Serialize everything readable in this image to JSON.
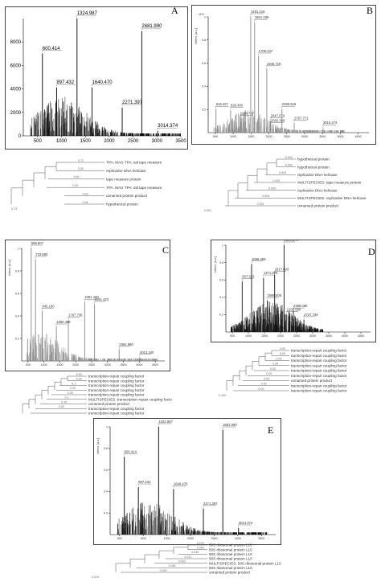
{
  "chart_data": [
    {
      "id": "A",
      "type": "bar",
      "panel_label": "A",
      "xlim": [
        200,
        3500
      ],
      "ylim": [
        0,
        10000
      ],
      "x_ticks": [
        500,
        1000,
        1500,
        2000,
        2500,
        3000,
        3500
      ],
      "y_ticks": [
        0,
        2000,
        4000,
        6000,
        8000
      ],
      "color": "#000000",
      "peaks": [
        {
          "mz": 600.414,
          "label": "600.414",
          "intensity": 7000
        },
        {
          "mz": 897.432,
          "label": "897.432",
          "intensity": 4100
        },
        {
          "mz": 1324.987,
          "label": "1324.987",
          "intensity": 10000
        },
        {
          "mz": 1640.47,
          "label": "1640.470",
          "intensity": 4100
        },
        {
          "mz": 2271.397,
          "label": "2271.397",
          "intensity": 2400
        },
        {
          "mz": 2681.99,
          "label": "2681.990",
          "intensity": 8900
        },
        {
          "mz": 3014.374,
          "label": "3014.374",
          "intensity": 400
        }
      ],
      "tree": {
        "leaves": [
          "TPA: MAG TPA: tail tape measure",
          "replicative DNA helicase",
          "tape measure protein",
          "TPA: MAG TPA: tail tape measure",
          "unnamed protein product",
          "hypothetical protein"
        ],
        "branch_labels": [
          "0.72",
          "0.00",
          "0.00",
          "0.00",
          "0.00",
          "0.94",
          "0.73"
        ]
      }
    },
    {
      "id": "B",
      "type": "bar",
      "panel_label": "B",
      "xlim": [
        300,
        4800
      ],
      "ylim": [
        0,
        1.0
      ],
      "x_ticks": [
        500,
        1000,
        1500,
        2000,
        2500,
        3000,
        3500,
        4000,
        4500
      ],
      "y_ticks": [
        0.2,
        0.4,
        0.6,
        0.8,
        1.0
      ],
      "y_axis_label": "Intens. [a.u.]",
      "y_exponent": "x10⁴",
      "color": "#888888",
      "peaks": [
        {
          "mz": 518.427,
          "label": "518.427",
          "intensity": 0.2
        },
        {
          "mz": 928.4,
          "label": "928.400",
          "intensity": 0.19
        },
        {
          "mz": 1194.737,
          "label": "1194.737",
          "intensity": 0.12
        },
        {
          "mz": 1491.216,
          "label": "1491.216",
          "intensity": 1.0
        },
        {
          "mz": 1601.189,
          "label": "1601.189",
          "intensity": 0.95
        },
        {
          "mz": 1709.447,
          "label": "1709.447",
          "intensity": 0.66
        },
        {
          "mz": 1940.719,
          "label": "1940.719",
          "intensity": 0.55
        },
        {
          "mz": 2047.074,
          "label": "2047.074",
          "intensity": 0.1
        },
        {
          "mz": 2050.366,
          "label": "2050.366",
          "intensity": 0.06
        },
        {
          "mz": 2365.516,
          "label": "2365.516",
          "intensity": 0.2
        },
        {
          "mz": 2707.771,
          "label": "2707.771",
          "intensity": 0.08
        },
        {
          "mz": 3515.274,
          "label": "3515.274",
          "intensity": 0.04
        }
      ],
      "tree": {
        "leaves": [
          "hypothetical protein",
          "hypothetical protein",
          "replicative DNA helicase",
          "MULTISPECIES: tape measure protein",
          "replicative DNA helicase",
          "MULTISPECIES: replicative DNA helicase",
          "unnamed protein product"
        ],
        "branch_labels": [
          "0.003",
          "0.003",
          "0.003",
          "0.002",
          "0.003",
          "0.003",
          "0.001",
          "0.001"
        ]
      }
    },
    {
      "id": "C",
      "type": "bar",
      "panel_label": "C",
      "xlim": [
        300,
        4800
      ],
      "ylim": [
        0,
        1.0
      ],
      "x_ticks": [
        500,
        1000,
        1500,
        2000,
        2500,
        3000,
        3500,
        4000,
        4500
      ],
      "y_ticks": [
        0.2,
        0.4,
        0.6,
        0.8,
        1.0
      ],
      "y_axis_label": "Intens. [a.u.]",
      "color": "#888888",
      "peaks": [
        {
          "mz": 598.807,
          "label": "598.807",
          "intensity": 1.0
        },
        {
          "mz": 733.88,
          "label": "733.880",
          "intensity": 0.9
        },
        {
          "mz": 945.18,
          "label": "945.180",
          "intensity": 0.44
        },
        {
          "mz": 1390.466,
          "label": "1390.466",
          "intensity": 0.3
        },
        {
          "mz": 1767.736,
          "label": "1767.736",
          "intensity": 0.36
        },
        {
          "mz": 2281.18,
          "label": "2281.180",
          "intensity": 0.52
        },
        {
          "mz": 2591.423,
          "label": "2591.423",
          "intensity": 0.5
        },
        {
          "mz": 3364.966,
          "label": "3364.966",
          "intensity": 0.1
        },
        {
          "mz": 4013.18,
          "label": "4013.180",
          "intensity": 0.03
        }
      ],
      "tree": {
        "leaves": [
          "transcription-repair coupling factor",
          "transcription-repair coupling factor",
          "transcription-repair coupling factor",
          "transcription-repair coupling factor",
          "transcription-repair coupling factor",
          "MULTISPECIES: transcription-repair coupling factor",
          "unnamed protein product",
          "transcription-repair coupling factor",
          "transcription-repair coupling factor"
        ],
        "branch_labels": [
          "0.00",
          "0.00",
          "0.1",
          "0.00",
          "0.00",
          "0.1",
          "0.10",
          "0.00"
        ]
      }
    },
    {
      "id": "D",
      "type": "bar",
      "panel_label": "D",
      "xlim": [
        300,
        4800
      ],
      "ylim": [
        0,
        1.0
      ],
      "x_ticks": [
        500,
        1000,
        1500,
        2000,
        2500,
        3000,
        3500,
        4000,
        4500
      ],
      "y_ticks": [
        0.2,
        0.4,
        0.6,
        0.8,
        1.0
      ],
      "y_axis_label": "Intens. [a.u.]",
      "color": "#111111",
      "peaks": [
        {
          "mz": 807.343,
          "label": "807.343",
          "intensity": 0.58
        },
        {
          "mz": 1099.469,
          "label": "1099.469",
          "intensity": 0.78
        },
        {
          "mz": 1471.59,
          "label": "1471.590",
          "intensity": 0.62
        },
        {
          "mz": 1586.008,
          "label": "1586.008",
          "intensity": 0.36
        },
        {
          "mz": 1817.693,
          "label": "1817.693",
          "intensity": 0.66
        },
        {
          "mz": 2109.376,
          "label": "2109.376",
          "intensity": 1.0
        },
        {
          "mz": 2193.59,
          "label": "2193.590",
          "intensity": 0.2
        },
        {
          "mz": 2398.08,
          "label": "2398.080",
          "intensity": 0.24
        },
        {
          "mz": 2727.735,
          "label": "2727.735",
          "intensity": 0.14
        }
      ],
      "tree": {
        "leaves": [
          "transcription-repair coupling factor",
          "transcription-repair coupling factor",
          "transcription-repair coupling factor",
          "transcription-repair coupling factor",
          "transcription-repair coupling factor",
          "transcription-repair coupling factor",
          "unnamed protein product",
          "transcription-repair coupling factor",
          "transcription-repair coupling factor"
        ],
        "branch_labels": [
          "0.00",
          "0.00",
          "0.00",
          "0.00",
          "0.00",
          "0.00",
          "0.00",
          "0.00",
          "0.00",
          "0.100"
        ]
      }
    },
    {
      "id": "E",
      "type": "bar",
      "panel_label": "E",
      "xlim": [
        300,
        3800
      ],
      "ylim": [
        0,
        1.0
      ],
      "x_ticks": [
        500,
        1000,
        1500,
        2000,
        2500,
        3000,
        3500
      ],
      "y_ticks": [
        0.2,
        0.4,
        0.6,
        0.8,
        1.0
      ],
      "y_axis_label": "Intens. [a.u.]",
      "color": "#000000",
      "peaks": [
        {
          "mz": 600.414,
          "label": "600.414",
          "intensity": 0.72
        },
        {
          "mz": 897.432,
          "label": "897.432",
          "intensity": 0.44
        },
        {
          "mz": 1324.987,
          "label": "1324.987",
          "intensity": 1.0
        },
        {
          "mz": 1640.47,
          "label": "1640.470",
          "intensity": 0.42
        },
        {
          "mz": 2271.397,
          "label": "2271.397",
          "intensity": 0.24
        },
        {
          "mz": 2681.99,
          "label": "2681.990",
          "intensity": 0.97
        },
        {
          "mz": 3014.374,
          "label": "3014.374",
          "intensity": 0.06
        }
      ],
      "tree": {
        "leaves": [
          "50S ribosomal protein L10",
          "50S ribosomal protein L10",
          "50S ribosomal protein L10",
          "50S ribosomal protein L10",
          "MULTISPECIES: 50S ribosomal protein L10",
          "50S ribosomal protein L10",
          "unnamed protein product"
        ],
        "branch_labels": [
          "0.275",
          "0.064",
          "0.035",
          "0.011",
          "0.003",
          "0.083",
          "0.015",
          "0.010"
        ]
      }
    }
  ]
}
